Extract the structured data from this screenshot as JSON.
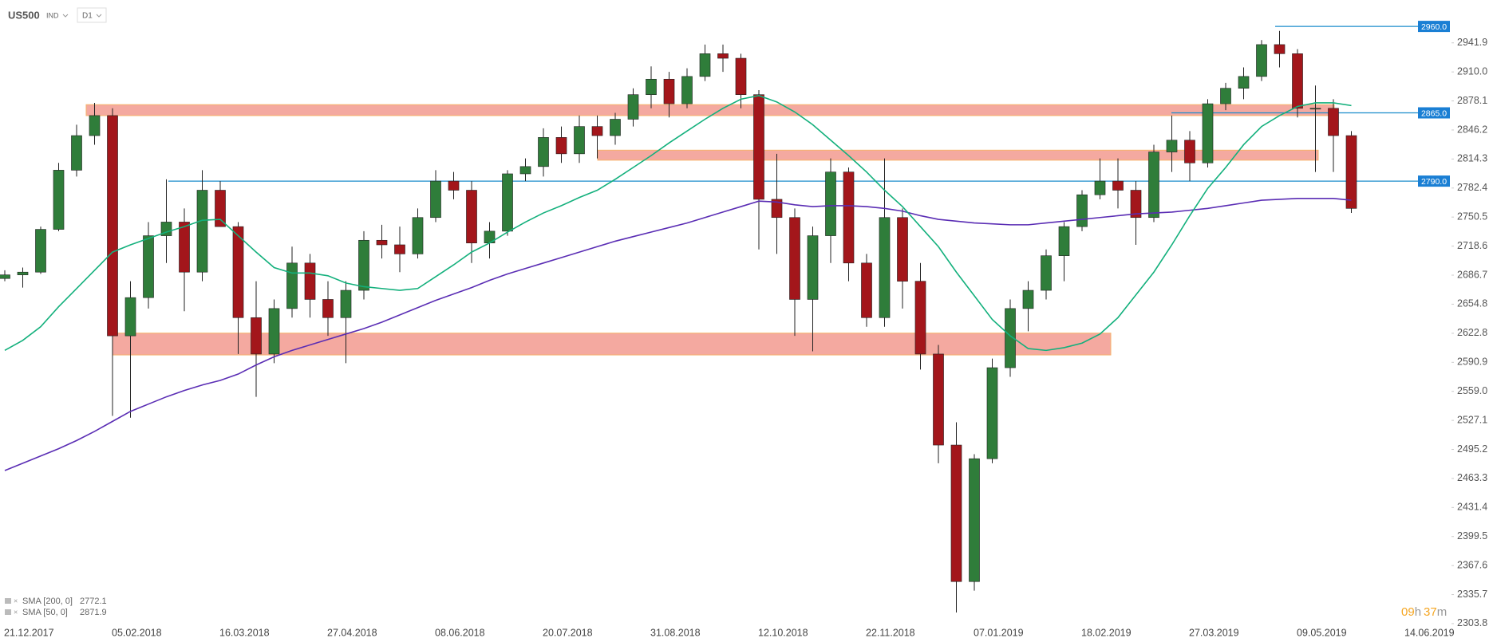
{
  "header": {
    "symbol": "US500",
    "market": "IND",
    "interval": "D1"
  },
  "timer": {
    "hours": "09",
    "hours_unit": "h",
    "minutes": "37",
    "minutes_unit": "m"
  },
  "chart_data": {
    "type": "candlestick",
    "categories": [
      "21.12.2017",
      null,
      null,
      null,
      null,
      null,
      "05.02.2018",
      null,
      null,
      null,
      null,
      null,
      "16.03.2018",
      null,
      null,
      null,
      null,
      null,
      "27.04.2018",
      null,
      null,
      null,
      null,
      null,
      "08.06.2018",
      null,
      null,
      null,
      null,
      null,
      "20.07.2018",
      null,
      null,
      null,
      null,
      null,
      "31.08.2018",
      null,
      null,
      null,
      null,
      null,
      "12.10.2018",
      null,
      null,
      null,
      null,
      null,
      "22.11.2018",
      null,
      null,
      null,
      null,
      null,
      "07.01.2019",
      null,
      null,
      null,
      null,
      null,
      "18.02.2019",
      null,
      null,
      null,
      null,
      null,
      "27.03.2019",
      null,
      null,
      null,
      null,
      null,
      "09.05.2019",
      null,
      null,
      null,
      null,
      null,
      "14.06.2019"
    ],
    "open": [
      2683,
      2687,
      2690,
      2737,
      2802,
      2840,
      2862,
      2620,
      2662,
      2730,
      2745,
      2690,
      2780,
      2740,
      2640,
      2600,
      2650,
      2700,
      2660,
      2640,
      2670,
      2725,
      2720,
      2710,
      2750,
      2790,
      2780,
      2722,
      2735,
      2798,
      2806,
      2838,
      2820,
      2850,
      2840,
      2858,
      2885,
      2902,
      2875,
      2905,
      2930,
      2925,
      2885,
      2770,
      2750,
      2660,
      2730,
      2800,
      2700,
      2640,
      2750,
      2680,
      2600,
      2500,
      2350,
      2485,
      2585,
      2650,
      2670,
      2708,
      2740,
      2775,
      2790,
      2780,
      2750,
      2822,
      2835,
      2810,
      2875,
      2892,
      2905,
      2940,
      2930,
      2870,
      2870,
      2840,
      null,
      null,
      null
    ],
    "high": [
      2692,
      2695,
      2740,
      2810,
      2852,
      2876,
      2870,
      2680,
      2745,
      2792,
      2760,
      2802,
      2790,
      2745,
      2680,
      2660,
      2718,
      2710,
      2680,
      2680,
      2735,
      2742,
      2740,
      2760,
      2802,
      2800,
      2790,
      2745,
      2802,
      2815,
      2848,
      2850,
      2862,
      2862,
      2865,
      2892,
      2916,
      2910,
      2914,
      2940,
      2940,
      2930,
      2890,
      2820,
      2760,
      2740,
      2815,
      2805,
      2710,
      2815,
      2760,
      2700,
      2610,
      2525,
      2490,
      2595,
      2660,
      2680,
      2715,
      2745,
      2780,
      2815,
      2815,
      2790,
      2830,
      2862,
      2845,
      2880,
      2898,
      2915,
      2945,
      2955,
      2935,
      2895,
      2880,
      2845,
      null,
      null,
      null
    ],
    "low": [
      2680,
      2673,
      2688,
      2735,
      2795,
      2830,
      2532,
      2530,
      2650,
      2700,
      2647,
      2680,
      2740,
      2600,
      2553,
      2590,
      2640,
      2640,
      2620,
      2590,
      2660,
      2705,
      2690,
      2705,
      2745,
      2770,
      2700,
      2705,
      2730,
      2790,
      2795,
      2810,
      2810,
      2815,
      2830,
      2850,
      2870,
      2860,
      2870,
      2900,
      2910,
      2870,
      2715,
      2710,
      2620,
      2603,
      2700,
      2680,
      2630,
      2630,
      2650,
      2583,
      2480,
      2316,
      2340,
      2480,
      2575,
      2625,
      2660,
      2680,
      2735,
      2770,
      2760,
      2720,
      2745,
      2800,
      2790,
      2805,
      2868,
      2880,
      2900,
      2915,
      2860,
      2800,
      2800,
      2755,
      null,
      null,
      null
    ],
    "close": [
      2687,
      2690,
      2737,
      2802,
      2840,
      2862,
      2620,
      2662,
      2730,
      2745,
      2690,
      2780,
      2740,
      2640,
      2600,
      2650,
      2700,
      2660,
      2640,
      2670,
      2725,
      2720,
      2710,
      2750,
      2790,
      2780,
      2722,
      2735,
      2798,
      2806,
      2838,
      2820,
      2850,
      2840,
      2858,
      2885,
      2902,
      2875,
      2905,
      2930,
      2925,
      2885,
      2770,
      2750,
      2660,
      2730,
      2800,
      2700,
      2640,
      2750,
      2680,
      2600,
      2500,
      2350,
      2485,
      2585,
      2650,
      2670,
      2708,
      2740,
      2775,
      2790,
      2780,
      2750,
      2822,
      2835,
      2810,
      2875,
      2892,
      2905,
      2940,
      2930,
      2870,
      2870,
      2840,
      2760,
      null,
      null,
      null
    ],
    "up_color": "#2f7d3a",
    "down_color": "#a3161b",
    "wick_color": "#222222",
    "lines": [
      {
        "name": "SMA [200, 0]",
        "last": 2772.1,
        "color": "#5a2db4",
        "values": [
          2472,
          2480,
          2488,
          2496,
          2505,
          2515,
          2526,
          2537,
          2545,
          2553,
          2560,
          2566,
          2571,
          2578,
          2588,
          2597,
          2604,
          2610,
          2616,
          2622,
          2628,
          2635,
          2643,
          2651,
          2659,
          2666,
          2673,
          2681,
          2688,
          2694,
          2700,
          2706,
          2712,
          2718,
          2724,
          2729,
          2734,
          2739,
          2744,
          2750,
          2756,
          2762,
          2768,
          2767,
          2764,
          2762,
          2763,
          2763,
          2762,
          2760,
          2757,
          2752,
          2748,
          2746,
          2744,
          2743,
          2742,
          2742,
          2744,
          2746,
          2748,
          2750,
          2752,
          2754,
          2755,
          2756,
          2758,
          2760,
          2763,
          2766,
          2769,
          2770,
          2771,
          2771,
          2771,
          2769,
          null,
          null,
          null
        ]
      },
      {
        "name": "SMA [50, 0]",
        "last": 2871.9,
        "color": "#13b07c",
        "values": [
          2604,
          2615,
          2630,
          2652,
          2672,
          2692,
          2712,
          2720,
          2727,
          2734,
          2740,
          2747,
          2748,
          2730,
          2712,
          2695,
          2689,
          2689,
          2686,
          2678,
          2674,
          2672,
          2670,
          2672,
          2685,
          2698,
          2712,
          2722,
          2734,
          2745,
          2755,
          2763,
          2772,
          2780,
          2792,
          2805,
          2818,
          2832,
          2845,
          2858,
          2870,
          2880,
          2884,
          2877,
          2866,
          2852,
          2835,
          2818,
          2800,
          2780,
          2762,
          2740,
          2718,
          2690,
          2664,
          2638,
          2620,
          2606,
          2604,
          2607,
          2612,
          2622,
          2640,
          2665,
          2690,
          2720,
          2752,
          2782,
          2805,
          2830,
          2850,
          2862,
          2872,
          2876,
          2876,
          2873,
          null,
          null,
          null
        ]
      }
    ],
    "levels": [
      {
        "value": 2960,
        "label": "2960.0"
      },
      {
        "value": 2865,
        "label": "2865.0"
      },
      {
        "value": 2790,
        "label": "2790.0"
      }
    ],
    "level_color": "#1a8ccc",
    "zones": [
      {
        "low": 2862,
        "high": 2874
      },
      {
        "low": 2813,
        "high": 2824
      },
      {
        "low": 2599,
        "high": 2623
      }
    ],
    "zone_color": "#f29a8f",
    "ylim": [
      2298.5,
      2989
    ],
    "yticks": [
      2303.8,
      2335.7,
      2367.6,
      2399.5,
      2431.4,
      2463.3,
      2495.2,
      2527.1,
      {
        "value": 2559.0,
        "label": "2559.0"
      },
      2590.9,
      2622.8,
      2654.8,
      2686.7,
      2718.6,
      2750.5,
      2782.4,
      2814.3,
      2846.2,
      2878.1,
      {
        "value": 2910.0,
        "label": "2910.0"
      },
      2941.9
    ]
  }
}
